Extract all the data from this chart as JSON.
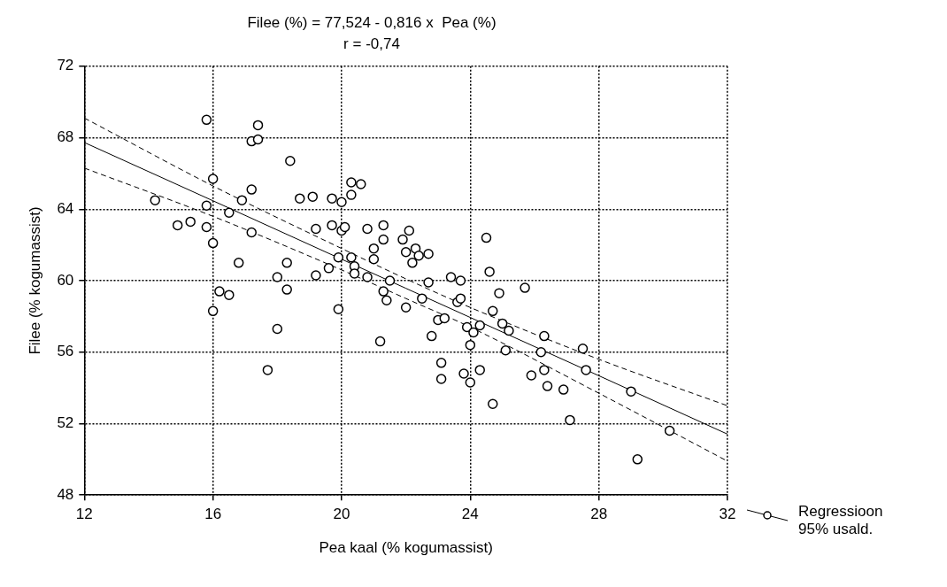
{
  "chart_data": {
    "type": "scatter",
    "title": "Filee (%) = 77,524 - 0,816 x  Pea (%)",
    "subtitle": "r = -0,74",
    "xlabel": "Pea kaal (% kogumassist)",
    "ylabel": "Filee (% kogumassist)",
    "xlim": [
      12,
      32
    ],
    "xticks": [
      12,
      16,
      20,
      24,
      28,
      32
    ],
    "ylim": [
      48,
      72
    ],
    "yticks": [
      48,
      52,
      56,
      60,
      64,
      68,
      72
    ],
    "grid": true,
    "legend": "bottom right",
    "marker": "circle",
    "series": [
      {
        "color": "#000000",
        "x": [
          15.8,
          17.4,
          17.2,
          17.4,
          18.4,
          16.0,
          17.2,
          14.2,
          15.8,
          16.5,
          16.9,
          14.9,
          15.3,
          15.8,
          16.0,
          17.2,
          16.8,
          16.2,
          16.5,
          16.0,
          18.0,
          18.3,
          18.3,
          18.0,
          17.7,
          18.7,
          19.1,
          19.7,
          19.2,
          19.7,
          19.2,
          19.6,
          19.9,
          19.9,
          20.0,
          20.0,
          20.1,
          20.3,
          20.3,
          20.6,
          20.3,
          20.4,
          20.4,
          20.8,
          20.8,
          21.0,
          21.0,
          21.3,
          21.3,
          21.3,
          21.4,
          21.5,
          21.9,
          22.0,
          22.0,
          22.1,
          22.2,
          22.3,
          22.4,
          22.7,
          22.5,
          22.7,
          22.8,
          21.2,
          23.0,
          23.1,
          23.1,
          23.2,
          23.4,
          23.6,
          23.7,
          23.7,
          23.8,
          23.9,
          24.0,
          24.0,
          24.1,
          24.3,
          24.3,
          24.5,
          24.6,
          24.7,
          24.9,
          25.0,
          25.1,
          25.2,
          24.7,
          25.7,
          25.9,
          26.2,
          26.3,
          26.3,
          26.4,
          26.9,
          27.1,
          27.5,
          27.6,
          29.0,
          29.2,
          30.2
        ],
        "values": [
          69.0,
          68.7,
          67.8,
          67.9,
          66.7,
          65.7,
          65.1,
          64.5,
          64.2,
          63.8,
          64.5,
          63.1,
          63.3,
          63.0,
          62.1,
          62.7,
          61.0,
          59.4,
          59.2,
          58.3,
          60.2,
          59.5,
          61.0,
          57.3,
          55.0,
          64.6,
          64.7,
          64.6,
          62.9,
          63.1,
          60.3,
          60.7,
          61.3,
          58.4,
          64.4,
          62.8,
          63.0,
          65.5,
          64.8,
          65.4,
          61.3,
          60.8,
          60.4,
          62.9,
          60.2,
          61.8,
          61.2,
          63.1,
          62.3,
          59.4,
          58.9,
          60.0,
          62.3,
          61.6,
          58.5,
          62.8,
          61.0,
          61.8,
          61.4,
          61.5,
          59.0,
          59.9,
          56.9,
          56.6,
          57.8,
          55.4,
          54.5,
          57.9,
          60.2,
          58.8,
          59.0,
          60.0,
          54.8,
          57.4,
          56.4,
          54.3,
          57.1,
          57.5,
          55.0,
          62.4,
          60.5,
          58.3,
          59.3,
          57.6,
          56.1,
          57.2,
          53.1,
          59.6,
          54.7,
          56.0,
          55.0,
          56.9,
          54.1,
          53.9,
          52.2,
          56.2,
          55.0,
          53.8,
          50.0,
          51.6
        ]
      },
      {
        "type": "line",
        "name": "Regressioon 95% usald.",
        "color": "#000000",
        "line_style": "solid",
        "marker": "none",
        "x": [
          12,
          16,
          20,
          22,
          24,
          28,
          32
        ],
        "values": [
          67.73,
          64.47,
          61.2,
          59.57,
          57.94,
          54.68,
          51.41
        ]
      },
      {
        "type": "line",
        "color": "#000000",
        "line_style": "dashed",
        "marker": "none",
        "x": [
          12,
          16,
          20,
          22,
          24,
          28,
          32
        ],
        "values": [
          69.1,
          65.3,
          61.8,
          60.1,
          58.5,
          55.6,
          53.0
        ]
      },
      {
        "type": "line",
        "color": "#000000",
        "line_style": "dashed",
        "marker": "none",
        "x": [
          12,
          16,
          20,
          22,
          24,
          28,
          32
        ],
        "values": [
          66.3,
          63.6,
          60.6,
          59.0,
          57.4,
          53.7,
          49.9
        ]
      }
    ]
  }
}
